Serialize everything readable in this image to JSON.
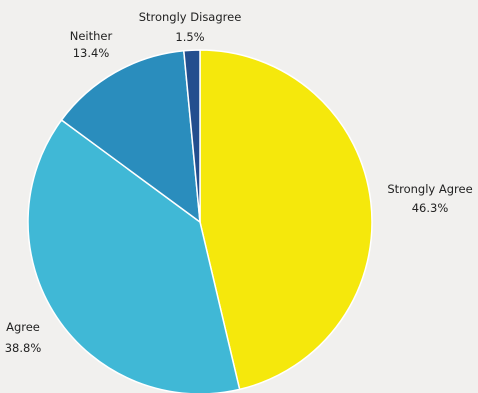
{
  "chart_data": {
    "type": "pie",
    "title": "",
    "start": "top",
    "direction": "clockwise",
    "legend": "none",
    "slices": [
      {
        "label": "Strongly Agree",
        "value": 46.3,
        "value_label": "46.3%",
        "color": "#f5e80c"
      },
      {
        "label": "Agree",
        "value": 38.8,
        "value_label": "38.8%",
        "color": "#40b8d6"
      },
      {
        "label": "Neither",
        "value": 13.4,
        "value_label": "13.4%",
        "color": "#2a8dbd"
      },
      {
        "label": "Strongly Disagree",
        "value": 1.5,
        "value_label": "1.5%",
        "color": "#234e8e"
      }
    ]
  }
}
